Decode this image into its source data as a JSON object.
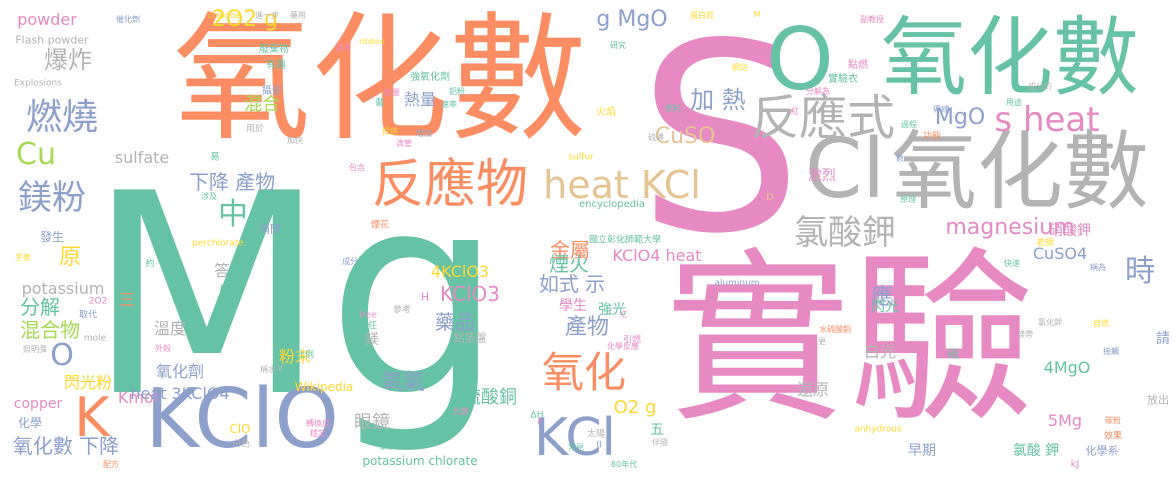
{
  "palette": {
    "green": "#66c2a5",
    "orange": "#fc8d62",
    "blue": "#8da0cb",
    "pink": "#e78ac3",
    "lime": "#a6d854",
    "yellow": "#ffd92f",
    "tan": "#e5c494",
    "gray": "#b3b3b3"
  },
  "words": [
    {
      "text": "Mg",
      "color": "green"
    },
    {
      "text": "S",
      "color": "pink"
    },
    {
      "text": "實驗",
      "color": "pink"
    },
    {
      "text": "氧化數",
      "color": "orange"
    },
    {
      "text": "氧化數",
      "color": "green"
    },
    {
      "text": "氧化數",
      "color": "gray"
    },
    {
      "text": "O",
      "color": "green"
    },
    {
      "text": "Cl",
      "color": "gray"
    },
    {
      "text": "KClO",
      "color": "blue"
    },
    {
      "text": "反應物",
      "color": "orange"
    },
    {
      "text": "反應式",
      "color": "gray"
    },
    {
      "text": "s heat",
      "color": "pink"
    },
    {
      "text": "heat KCl",
      "color": "tan"
    },
    {
      "text": "氯酸鉀",
      "color": "gray"
    },
    {
      "text": "KCl",
      "color": "blue"
    },
    {
      "text": "氧化",
      "color": "orange"
    },
    {
      "text": "K",
      "color": "orange"
    },
    {
      "text": "燃燒",
      "color": "blue"
    },
    {
      "text": "鎂粉",
      "color": "blue"
    },
    {
      "text": "爆炸",
      "color": "gray"
    },
    {
      "text": "Cu",
      "color": "lime"
    },
    {
      "text": "時",
      "color": "blue"
    },
    {
      "text": "magnesium",
      "color": "pink"
    },
    {
      "text": "CuSO",
      "color": "tan"
    },
    {
      "text": "加 熱",
      "color": "blue"
    },
    {
      "text": "MgO",
      "color": "blue"
    },
    {
      "text": "2O2 g",
      "color": "yellow"
    },
    {
      "text": "g MgO",
      "color": "blue"
    },
    {
      "text": "中",
      "color": "green"
    },
    {
      "text": "下降 產物",
      "color": "blue"
    },
    {
      "text": "如式 示",
      "color": "blue"
    },
    {
      "text": "原",
      "color": "yellow"
    },
    {
      "text": "分解",
      "color": "green"
    },
    {
      "text": "混合物",
      "color": "lime"
    },
    {
      "text": "O",
      "color": "blue"
    },
    {
      "text": "金屬",
      "color": "orange"
    },
    {
      "text": "煙火",
      "color": "green"
    },
    {
      "text": "產物",
      "color": "blue"
    },
    {
      "text": "藥品",
      "color": "blue"
    },
    {
      "text": "氧氣",
      "color": "blue"
    },
    {
      "text": "硫酸銅",
      "color": "green"
    },
    {
      "text": "氧化數 下降",
      "color": "blue"
    },
    {
      "text": "KClO4 heat",
      "color": "pink"
    },
    {
      "text": "KClO3",
      "color": "pink"
    },
    {
      "text": "4KClO3",
      "color": "yellow"
    },
    {
      "text": "O2 g",
      "color": "yellow"
    },
    {
      "text": "眼鏡",
      "color": "gray"
    },
    {
      "text": "混合",
      "color": "lime"
    },
    {
      "text": "熱量",
      "color": "blue"
    },
    {
      "text": "sulfate",
      "color": "gray"
    },
    {
      "text": "potassium",
      "color": "gray"
    },
    {
      "text": "Kmol",
      "color": "pink"
    },
    {
      "text": "heat 3KClO4",
      "color": "blue"
    },
    {
      "text": "閃光粉",
      "color": "yellow"
    },
    {
      "text": "氧化劑",
      "color": "blue"
    },
    {
      "text": "溫度",
      "color": "gray"
    },
    {
      "text": "粉末",
      "color": "yellow"
    },
    {
      "text": "還原",
      "color": "gray"
    },
    {
      "text": "白光",
      "color": "gray"
    },
    {
      "text": "5Mg",
      "color": "pink"
    },
    {
      "text": "4MgO",
      "color": "green"
    },
    {
      "text": "CuSO4",
      "color": "blue"
    },
    {
      "text": "硝酸鉀",
      "color": "pink"
    },
    {
      "text": "氯酸 鉀",
      "color": "green"
    },
    {
      "text": "閃光",
      "color": "green"
    },
    {
      "text": "激烈",
      "color": "pink"
    },
    {
      "text": "應",
      "color": "blue"
    },
    {
      "text": "copper",
      "color": "pink"
    },
    {
      "text": "答",
      "color": "gray"
    },
    {
      "text": "powder",
      "color": "pink"
    },
    {
      "text": "Flash powder",
      "color": "gray"
    },
    {
      "text": "Explosions",
      "color": "gray"
    },
    {
      "text": "potassium chlorate",
      "color": "green"
    },
    {
      "text": "Wikipedia",
      "color": "yellow"
    },
    {
      "text": "ClO",
      "color": "yellow"
    },
    {
      "text": "學生",
      "color": "pink"
    },
    {
      "text": "強光",
      "color": "green"
    },
    {
      "text": "早期",
      "color": "blue"
    },
    {
      "text": "五",
      "color": "green"
    },
    {
      "text": "三",
      "color": "orange"
    },
    {
      "text": "水",
      "color": "green"
    },
    {
      "text": "熱",
      "color": "green"
    },
    {
      "text": "鎂",
      "color": "gray"
    },
    {
      "text": "發生",
      "color": "blue"
    },
    {
      "text": "化學",
      "color": "blue"
    },
    {
      "text": "請問",
      "color": "blue"
    },
    {
      "text": "化學系",
      "color": "blue"
    },
    {
      "text": "放出",
      "color": "gray"
    },
    {
      "text": "請",
      "color": "blue"
    },
    {
      "text": "硫",
      "color": "green"
    },
    {
      "text": "chloride",
      "color": "yellow"
    },
    {
      "text": "進一步",
      "color": "gray"
    },
    {
      "text": "藥用",
      "color": "gray"
    },
    {
      "text": "ribbon",
      "color": "yellow"
    },
    {
      "text": "強氧化劑",
      "color": "green"
    },
    {
      "text": "有趣",
      "color": "green"
    },
    {
      "text": "廢棄物",
      "color": "green"
    },
    {
      "text": "火焰",
      "color": "yellow"
    },
    {
      "text": "實驗衣",
      "color": "green"
    },
    {
      "text": "點燃",
      "color": "pink"
    },
    {
      "text": "蛋白質",
      "color": "yellow"
    },
    {
      "text": "encyclopedia",
      "color": "green"
    },
    {
      "text": "國立彰化師範大學",
      "color": "green"
    },
    {
      "text": "perchlorate",
      "color": "yellow"
    },
    {
      "text": "aluminum",
      "color": "blue"
    },
    {
      "text": "anhydrous",
      "color": "yellow"
    },
    {
      "text": "sulfur",
      "color": "yellow"
    },
    {
      "text": "free",
      "color": "pink"
    },
    {
      "text": "mole",
      "color": "gray"
    },
    {
      "text": "2O2",
      "color": "pink"
    },
    {
      "text": "取代",
      "color": "blue"
    },
    {
      "text": "比例",
      "color": "green"
    },
    {
      "text": "責任",
      "color": "green"
    },
    {
      "text": "參考",
      "color": "gray"
    },
    {
      "text": "鋁箔盤",
      "color": "gray"
    },
    {
      "text": "煙花",
      "color": "orange"
    },
    {
      "text": "成分",
      "color": "blue"
    },
    {
      "text": "化學反應",
      "color": "pink"
    },
    {
      "text": "引燃",
      "color": "pink"
    },
    {
      "text": "光譜",
      "color": "pink"
    },
    {
      "text": "太陽",
      "color": "gray"
    },
    {
      "text": "白色",
      "color": "gray"
    },
    {
      "text": "常見",
      "color": "green"
    },
    {
      "text": "伴隨",
      "color": "gray"
    },
    {
      "text": "效果",
      "color": "orange"
    },
    {
      "text": "功能",
      "color": "orange"
    },
    {
      "text": "老師",
      "color": "yellow"
    },
    {
      "text": "能量",
      "color": "pink"
    },
    {
      "text": "戴",
      "color": "green"
    },
    {
      "text": "速率",
      "color": "green"
    },
    {
      "text": "提供",
      "color": "yellow"
    },
    {
      "text": "增加",
      "color": "blue"
    },
    {
      "text": "攝影",
      "color": "blue"
    },
    {
      "text": "製造",
      "color": "pink"
    },
    {
      "text": "用於",
      "color": "gray"
    },
    {
      "text": "加快",
      "color": "gray"
    },
    {
      "text": "易",
      "color": "green"
    },
    {
      "text": "手套",
      "color": "yellow"
    },
    {
      "text": "照明彈",
      "color": "gray"
    },
    {
      "text": "配方",
      "color": "orange"
    },
    {
      "text": "概念",
      "color": "green"
    },
    {
      "text": "涉及",
      "color": "green"
    },
    {
      "text": "約",
      "color": "green"
    },
    {
      "text": "ΔH",
      "color": "green"
    },
    {
      "text": "kJ",
      "color": "pink"
    },
    {
      "text": "D",
      "color": "tan"
    },
    {
      "text": "H",
      "color": "pink"
    },
    {
      "text": "F",
      "color": "pink"
    },
    {
      "text": "C",
      "color": "pink"
    },
    {
      "text": "M",
      "color": "yellow"
    },
    {
      "text": "80年代",
      "color": "green"
    },
    {
      "text": "催化劑",
      "color": "blue"
    },
    {
      "text": "副教授",
      "color": "pink"
    },
    {
      "text": "過程",
      "color": "green"
    },
    {
      "text": "原理",
      "color": "green"
    },
    {
      "text": "導線",
      "color": "blue"
    },
    {
      "text": "用途",
      "color": "green"
    },
    {
      "text": "鋁粉",
      "color": "green"
    },
    {
      "text": "碳粉",
      "color": "orange"
    },
    {
      "text": "快速",
      "color": "green"
    },
    {
      "text": "稱為",
      "color": "blue"
    },
    {
      "text": "氯化鉀",
      "color": "gray"
    },
    {
      "text": "鎂帶",
      "color": "gray"
    },
    {
      "text": "紅",
      "color": "pink"
    },
    {
      "text": "包含",
      "color": "pink"
    },
    {
      "text": "研究",
      "color": "green"
    },
    {
      "text": "自燃",
      "color": "yellow"
    },
    {
      "text": "接觸",
      "color": "blue"
    },
    {
      "text": "分解為",
      "color": "pink"
    },
    {
      "text": "成分的",
      "color": "gray"
    },
    {
      "text": "網站",
      "color": "yellow"
    },
    {
      "text": "燃料",
      "color": "green"
    },
    {
      "text": "硫磺",
      "color": "gray"
    },
    {
      "text": "水硫酸銅",
      "color": "orange"
    },
    {
      "text": "外殼",
      "color": "pink"
    },
    {
      "text": "轉換成",
      "color": "pink"
    },
    {
      "text": "穩定",
      "color": "pink"
    },
    {
      "text": "滴管",
      "color": "pink"
    },
    {
      "text": "稱水平",
      "color": "gray"
    },
    {
      "text": "更",
      "color": "gray"
    },
    {
      "text": "數",
      "color": "blue"
    },
    {
      "text": "事涉及",
      "color": "green"
    },
    {
      "text": "II",
      "color": "blue"
    }
  ]
}
